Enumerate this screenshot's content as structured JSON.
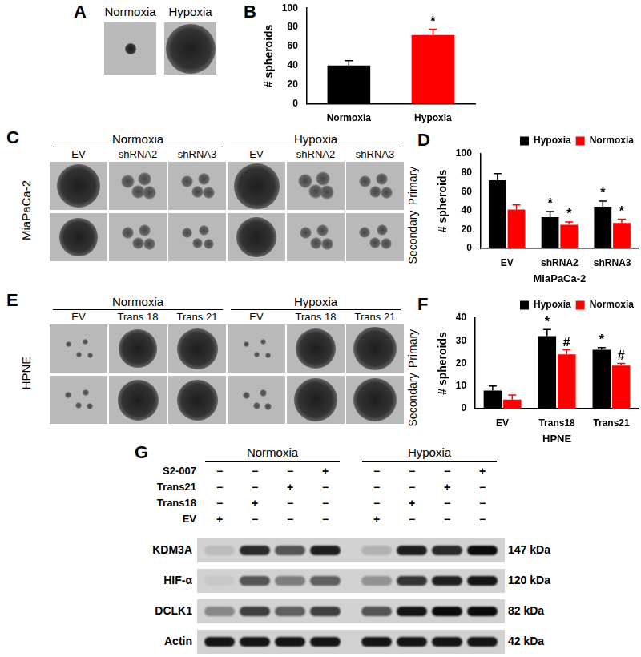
{
  "chart_data": [
    {
      "panel": "B",
      "type": "bar",
      "categories": [
        "Normoxia",
        "Hypoxia"
      ],
      "values": [
        40,
        72
      ],
      "errors": [
        5,
        6
      ],
      "colors": [
        "#000000",
        "#ff0000"
      ],
      "annotations": [
        null,
        "*"
      ],
      "y_label": "# spheroids",
      "ylim": [
        0,
        100
      ],
      "yticks": [
        0,
        20,
        40,
        60,
        80,
        100
      ],
      "grid": false
    },
    {
      "panel": "D",
      "type": "bar",
      "categories": [
        "EV",
        "shRNA2",
        "shRNA3"
      ],
      "x_label": "MiaPaCa-2",
      "series": [
        {
          "name": "Hypoxia",
          "color": "#000000",
          "values": [
            72,
            33,
            44
          ],
          "errors": [
            7,
            6,
            6
          ],
          "annotations": [
            null,
            "*",
            "*"
          ]
        },
        {
          "name": "Normoxia",
          "color": "#ff0000",
          "values": [
            41,
            25,
            27
          ],
          "errors": [
            5,
            3,
            4
          ],
          "annotations": [
            null,
            "*",
            "*"
          ]
        }
      ],
      "y_label": "# spheroids",
      "ylim": [
        0,
        100
      ],
      "yticks": [
        0,
        20,
        40,
        60,
        80,
        100
      ],
      "grid": false,
      "legend": "upper right"
    },
    {
      "panel": "F",
      "type": "bar",
      "categories": [
        "EV",
        "Trans18",
        "Trans21"
      ],
      "x_label": "HPNE",
      "series": [
        {
          "name": "Hypoxia",
          "color": "#000000",
          "values": [
            8,
            32,
            26
          ],
          "errors": [
            2,
            3,
            1
          ],
          "annotations": [
            null,
            "*",
            "*"
          ]
        },
        {
          "name": "Normoxia",
          "color": "#ff0000",
          "values": [
            4,
            24,
            19
          ],
          "errors": [
            2,
            2,
            1
          ],
          "annotations": [
            null,
            "#",
            "#"
          ]
        }
      ],
      "y_label": "# spheroids",
      "ylim": [
        0,
        40
      ],
      "yticks": [
        0,
        10,
        20,
        30,
        40
      ],
      "grid": false,
      "legend": "upper right"
    }
  ],
  "figure": {
    "A": {
      "label": "A",
      "columns": [
        "Normoxia",
        "Hypoxia"
      ]
    },
    "C": {
      "label": "C",
      "groups": [
        "Normoxia",
        "Hypoxia"
      ],
      "columns": [
        "EV",
        "shRNA2",
        "shRNA3"
      ],
      "cell_line": "MiaPaCa-2",
      "rows": [
        "Primary",
        "Secondary"
      ]
    },
    "E": {
      "label": "E",
      "groups": [
        "Normoxia",
        "Hypoxia"
      ],
      "columns": [
        "EV",
        "Trans 18",
        "Trans 21"
      ],
      "cell_line": "HPNE",
      "rows": [
        "Primary",
        "Secondary"
      ]
    },
    "G": {
      "label": "G",
      "groups": [
        "Normoxia",
        "Hypoxia"
      ],
      "treatments": [
        {
          "name": "S2-007",
          "lanes": [
            "−",
            "−",
            "−",
            "+",
            "−",
            "−",
            "−",
            "+"
          ]
        },
        {
          "name": "Trans21",
          "lanes": [
            "−",
            "−",
            "+",
            "−",
            "−",
            "−",
            "+",
            "−"
          ]
        },
        {
          "name": "Trans18",
          "lanes": [
            "−",
            "+",
            "−",
            "−",
            "−",
            "+",
            "−",
            "−"
          ]
        },
        {
          "name": "EV",
          "lanes": [
            "+",
            "−",
            "−",
            "−",
            "+",
            "−",
            "−",
            "−"
          ]
        }
      ],
      "bands": [
        {
          "name": "KDM3A",
          "size": "147 kDa",
          "intensity": [
            0.1,
            0.8,
            0.6,
            0.85,
            0.15,
            0.85,
            0.8,
            0.95
          ]
        },
        {
          "name": "HIF-α",
          "size": "120 kDa",
          "intensity": [
            0.05,
            0.6,
            0.4,
            0.55,
            0.3,
            0.75,
            0.85,
            0.9
          ]
        },
        {
          "name": "DCLK1",
          "size": "82 kDa",
          "intensity": [
            0.35,
            0.7,
            0.55,
            0.7,
            0.6,
            0.9,
            0.95,
            0.95
          ]
        },
        {
          "name": "Actin",
          "size": "42 kDa",
          "intensity": [
            0.9,
            0.9,
            0.9,
            0.9,
            0.9,
            0.9,
            0.9,
            0.9
          ]
        }
      ]
    }
  }
}
